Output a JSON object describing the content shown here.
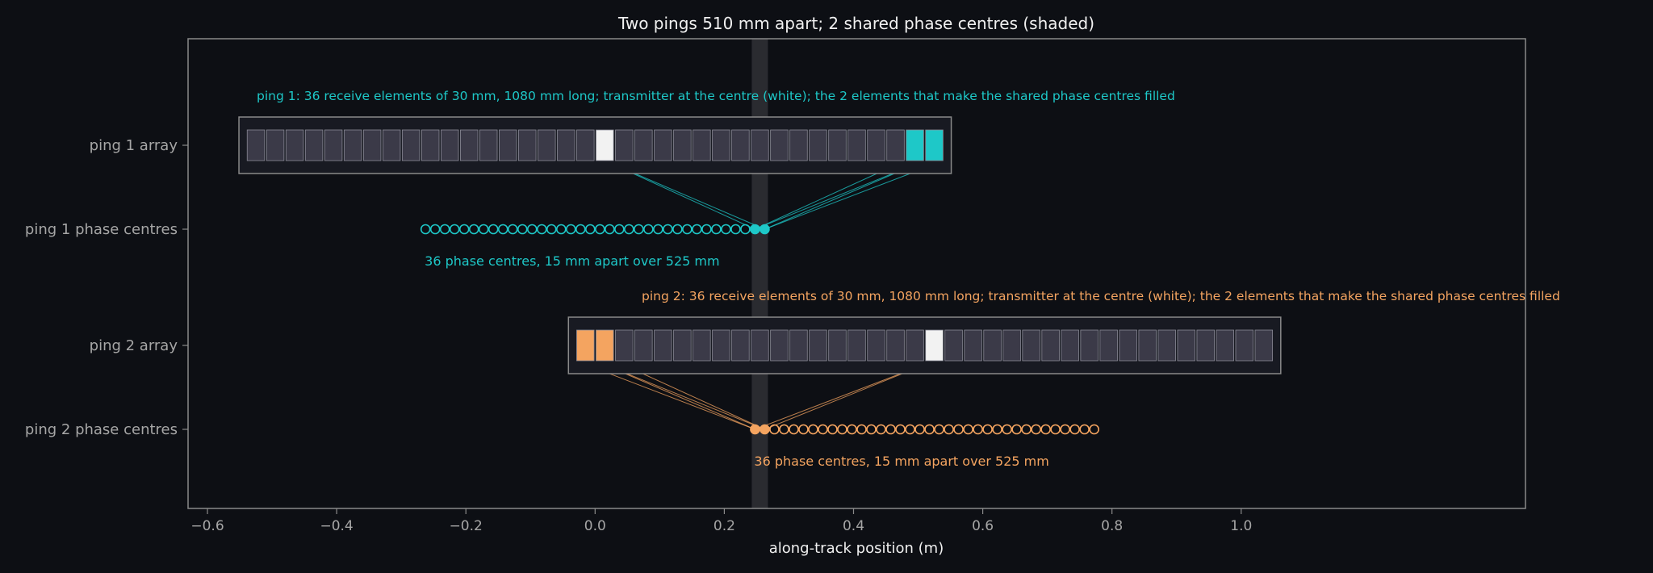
{
  "chart_data": {
    "type": "scatter",
    "title": "Two pings 510 mm apart; 2 shared phase centres (shaded)",
    "xlabel": "along-track position (m)",
    "ylabel": "",
    "xlim": [
      -0.63,
      1.44
    ],
    "x_ticks": [
      -0.6,
      -0.4,
      -0.2,
      0.0,
      0.2,
      0.4,
      0.6,
      0.8,
      1.0
    ],
    "x_tick_labels": [
      "−0.6",
      "−0.4",
      "−0.2",
      "0.0",
      "0.2",
      "0.4",
      "0.6",
      "0.8",
      "1.0"
    ],
    "y_categories": [
      "ping 1 array",
      "ping 1 phase centres",
      "ping 2 array",
      "ping 2 phase centres"
    ],
    "grid": false,
    "shared_band": [
      0.2425,
      0.2675
    ],
    "element_width_m": 0.03,
    "n_elements": 36,
    "pings": [
      {
        "name": "ping 1",
        "color": "#1ec8c8",
        "element_start_m": -0.54,
        "transmitter_index": 18,
        "shared_element_indices": [
          34,
          35
        ],
        "phase_centres_start_m": -0.2625,
        "phase_centre_spacing_m": 0.015,
        "shared_phase_centre_indices": [
          34,
          35
        ],
        "array_label": "ping 1: 36 receive elements of 30 mm, 1080 mm long; transmitter at the centre (white); the 2 elements that make the shared phase centres filled",
        "pc_label": "36 phase centres, 15 mm apart over 525 mm"
      },
      {
        "name": "ping 2",
        "color": "#f4a460",
        "element_start_m": -0.03,
        "transmitter_index": 18,
        "shared_element_indices": [
          0,
          1
        ],
        "phase_centres_start_m": 0.2475,
        "phase_centre_spacing_m": 0.015,
        "shared_phase_centre_indices": [
          0,
          1
        ],
        "array_label": "ping 2: 36 receive elements of 30 mm, 1080 mm long; transmitter at the centre (white); the 2 elements that make the shared phase centres filled",
        "pc_label": "36 phase centres, 15 mm apart over 525 mm"
      }
    ]
  },
  "colors": {
    "background": "#0d0f14",
    "frame": "#8a8a8a",
    "element_fill": "#3b3a48",
    "element_stroke": "#8a8a96",
    "transmitter": "#f2f2f2",
    "band": "#2a2b30",
    "text": "#f0f0f0",
    "muted_text": "#a6a6a6"
  }
}
